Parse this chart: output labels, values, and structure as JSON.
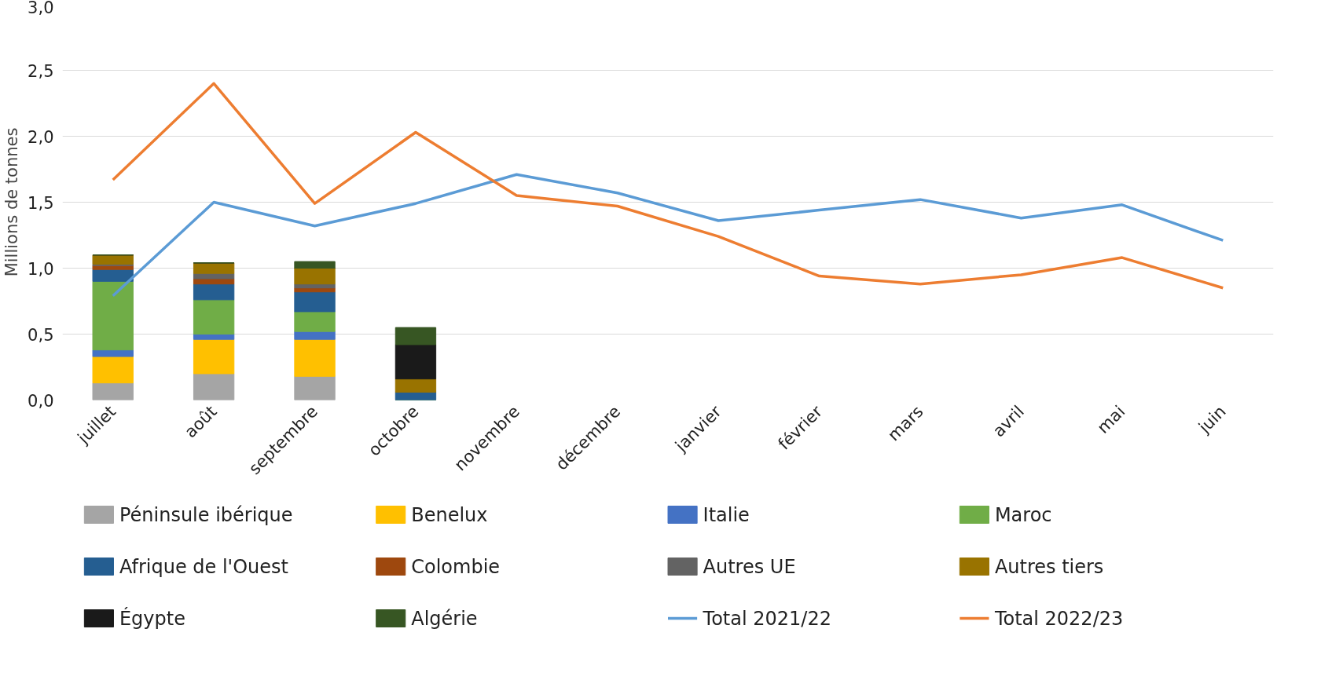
{
  "chart_data": {
    "type": "bar",
    "stacked": true,
    "ylabel": "Millions de tonnes",
    "categories": [
      "juillet",
      "août",
      "septembre",
      "octobre",
      "novembre",
      "décembre",
      "janvier",
      "février",
      "mars",
      "avril",
      "mai",
      "juin"
    ],
    "ylim": [
      0,
      3
    ],
    "yticks": [
      {
        "value": 0,
        "label": "0,0"
      },
      {
        "value": 0.5,
        "label": "0,5"
      },
      {
        "value": 1,
        "label": "1,0"
      },
      {
        "value": 1.5,
        "label": "1,5"
      },
      {
        "value": 2,
        "label": "2,0"
      },
      {
        "value": 2.5,
        "label": "2,5"
      },
      {
        "value": 3,
        "label": "3,0"
      }
    ],
    "grid": "y",
    "legend": "bottom",
    "series": [
      {
        "name": "Péninsule ibérique",
        "color": "#a5a5a5",
        "values": [
          0.13,
          0.2,
          0.18,
          0,
          null,
          null,
          null,
          null,
          null,
          null,
          null,
          null
        ]
      },
      {
        "name": "Benelux",
        "color": "#ffc000",
        "values": [
          0.2,
          0.26,
          0.28,
          0,
          null,
          null,
          null,
          null,
          null,
          null,
          null,
          null
        ]
      },
      {
        "name": "Italie",
        "color": "#4472c4",
        "values": [
          0.05,
          0.04,
          0.06,
          0,
          null,
          null,
          null,
          null,
          null,
          null,
          null,
          null
        ]
      },
      {
        "name": "Maroc",
        "color": "#70ad47",
        "values": [
          0.52,
          0.26,
          0.15,
          0,
          null,
          null,
          null,
          null,
          null,
          null,
          null,
          null
        ]
      },
      {
        "name": "Afrique de l'Ouest",
        "color": "#255e91",
        "values": [
          0.09,
          0.12,
          0.15,
          0.06,
          null,
          null,
          null,
          null,
          null,
          null,
          null,
          null
        ]
      },
      {
        "name": "Colombie",
        "color": "#9e480e",
        "values": [
          0.03,
          0.04,
          0.03,
          0,
          null,
          null,
          null,
          null,
          null,
          null,
          null,
          null
        ]
      },
      {
        "name": "Autres UE",
        "color": "#636363",
        "values": [
          0.01,
          0.04,
          0.03,
          0,
          null,
          null,
          null,
          null,
          null,
          null,
          null,
          null
        ]
      },
      {
        "name": "Autres tiers",
        "color": "#997300",
        "values": [
          0.07,
          0.08,
          0.12,
          0.1,
          null,
          null,
          null,
          null,
          null,
          null,
          null,
          null
        ]
      },
      {
        "name": "Égypte",
        "color": "#1a1a1a",
        "values": [
          0,
          0,
          0,
          0.26,
          null,
          null,
          null,
          null,
          null,
          null,
          null,
          null
        ]
      },
      {
        "name": "Algérie",
        "color": "#375623",
        "values": [
          0,
          0,
          0.05,
          0.13,
          null,
          null,
          null,
          null,
          null,
          null,
          null,
          null
        ]
      },
      {
        "name": "Total 2021/22",
        "type": "line",
        "color": "#5b9bd5",
        "values": [
          0.79,
          1.5,
          1.32,
          1.49,
          1.71,
          1.57,
          1.36,
          1.44,
          1.52,
          1.38,
          1.48,
          1.21
        ]
      },
      {
        "name": "Total 2022/23",
        "type": "line",
        "color": "#ed7d31",
        "values": [
          1.67,
          2.4,
          1.49,
          2.03,
          1.55,
          1.47,
          1.24,
          0.94,
          0.88,
          0.95,
          1.08,
          0.85
        ]
      }
    ]
  }
}
